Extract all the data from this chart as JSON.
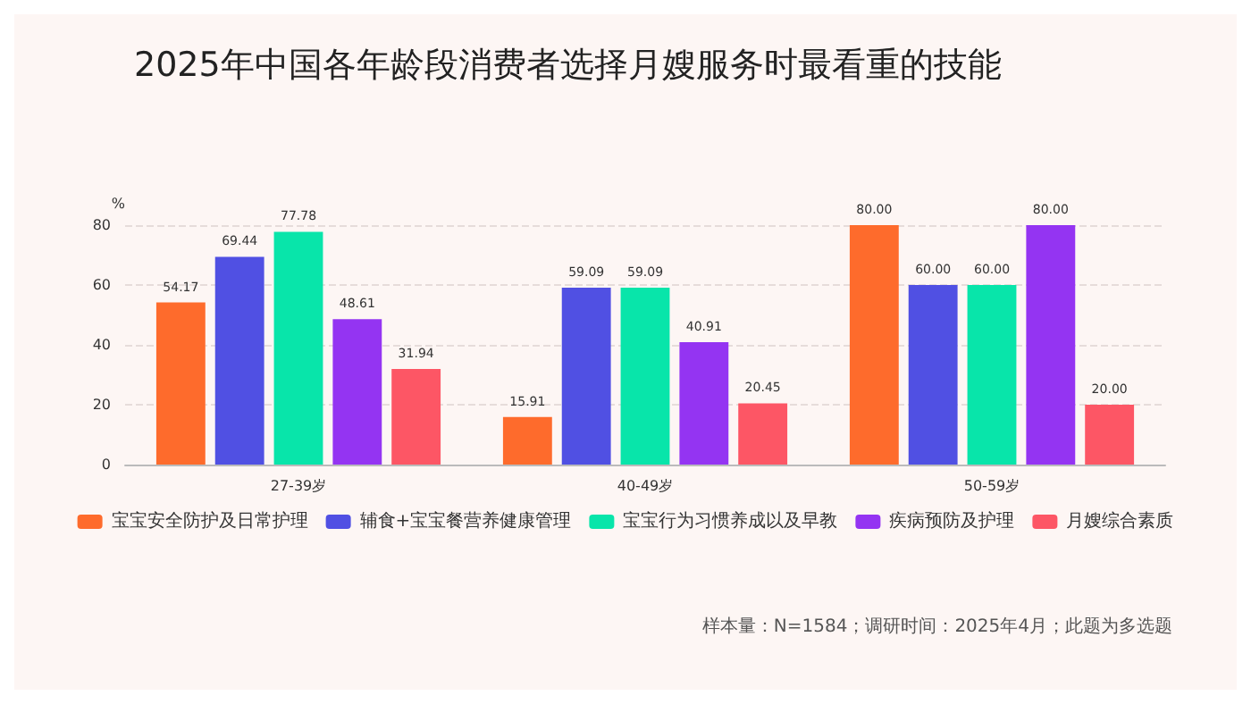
{
  "chart_data": {
    "type": "bar",
    "title": "2025年中国各年龄段消费者选择月嫂服务时最看重的技能",
    "ylabel": "%",
    "categories": [
      "27-39岁",
      "40-49岁",
      "50-59岁"
    ],
    "series": [
      {
        "name": "宝宝安全防护及日常护理",
        "color": "#fe6b2c",
        "values": [
          54.17,
          15.91,
          80.0
        ],
        "value_labels": [
          "54.17",
          "15.91",
          "80.00"
        ]
      },
      {
        "name": "辅食+宝宝餐营养健康管理",
        "color": "#5050e3",
        "values": [
          69.44,
          59.09,
          60.0
        ],
        "value_labels": [
          "69.44",
          "59.09",
          "60.00"
        ]
      },
      {
        "name": "宝宝行为习惯养成以及早教",
        "color": "#08e5aa",
        "values": [
          77.78,
          59.09,
          60.0
        ],
        "value_labels": [
          "77.78",
          "59.09",
          "60.00"
        ]
      },
      {
        "name": "疾病预防及护理",
        "color": "#9434f2",
        "values": [
          48.61,
          40.91,
          80.0
        ],
        "value_labels": [
          "48.61",
          "40.91",
          "80.00"
        ]
      },
      {
        "name": "月嫂综合素质",
        "color": "#fd5665",
        "values": [
          31.94,
          20.45,
          20.0
        ],
        "value_labels": [
          "31.94",
          "20.45",
          "20.00"
        ]
      }
    ],
    "ylim": [
      0,
      80
    ],
    "yticks": [
      0,
      20,
      40,
      60,
      80
    ],
    "grid": "y",
    "legend": "bottom",
    "annotations": [
      "样本量：N=1584；调研时间：2025年4月；此题为多选题"
    ]
  }
}
